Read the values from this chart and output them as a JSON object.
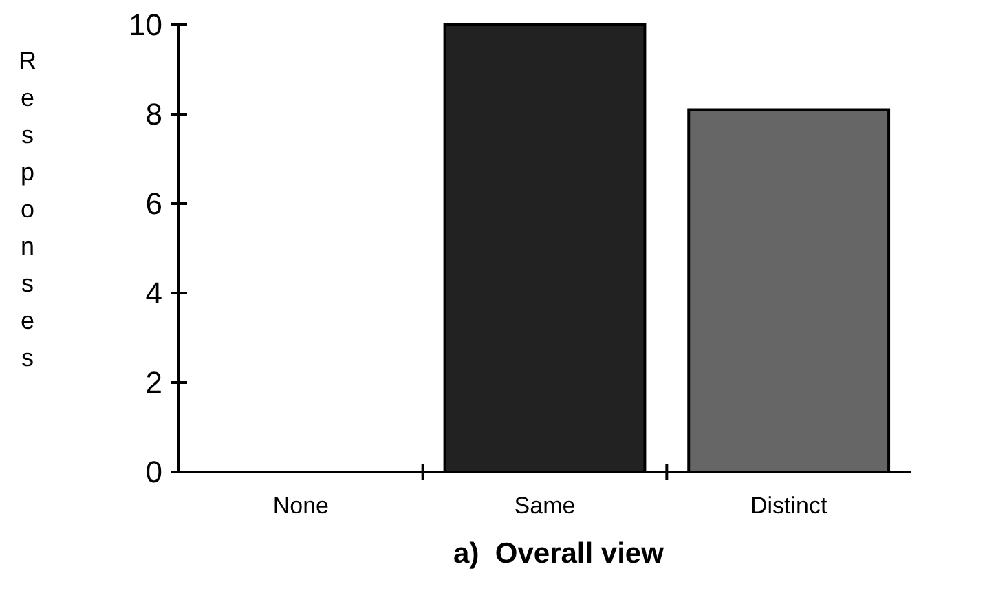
{
  "chart_data": {
    "type": "bar",
    "title": "a)  Overall view",
    "ylabel": "Responses",
    "categories": [
      "None",
      "Same",
      "Distinct"
    ],
    "values": [
      0,
      10,
      8.1
    ],
    "colors": [
      "#222222",
      "#222222",
      "#666666"
    ],
    "ylim": [
      0,
      10
    ],
    "yticks": [
      0,
      2,
      4,
      6,
      8,
      10
    ],
    "grid": false
  }
}
